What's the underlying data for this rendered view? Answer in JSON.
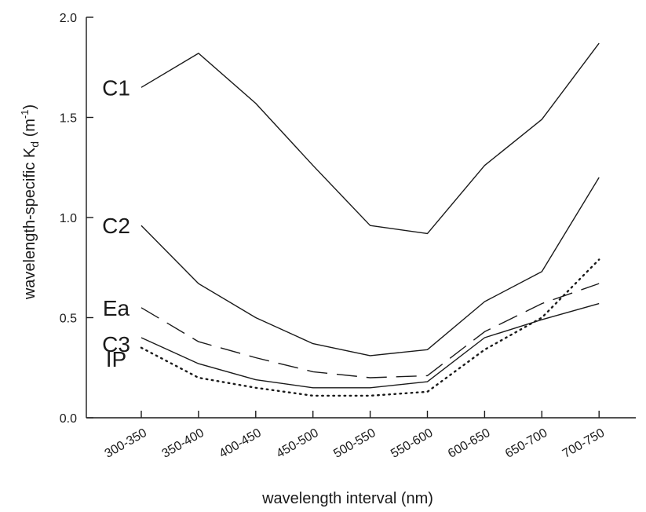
{
  "chart_data": {
    "type": "line",
    "title": "",
    "xlabel": "wavelength interval (nm)",
    "ylabel": "wavelength-specific K",
    "ylabel_subscript": "d",
    "ylabel_unit_open": " (m",
    "ylabel_unit_sup": "-1",
    "ylabel_unit_close": ")",
    "ylim": [
      0.0,
      2.0
    ],
    "yticks": [
      "0.0",
      "0.5",
      "1.0",
      "1.5",
      "2.0"
    ],
    "ytick_values": [
      0.0,
      0.5,
      1.0,
      1.5,
      2.0
    ],
    "categories": [
      "300-350",
      "350-400",
      "400-450",
      "450-500",
      "500-550",
      "550-600",
      "600-650",
      "650-700",
      "700-750"
    ],
    "grid": false,
    "series": [
      {
        "name": "C1",
        "style": "solid",
        "color": "#1a1a1a",
        "values": [
          1.65,
          1.82,
          1.57,
          1.26,
          0.96,
          0.92,
          1.26,
          1.49,
          1.87
        ]
      },
      {
        "name": "C2",
        "style": "solid",
        "color": "#1a1a1a",
        "values": [
          0.96,
          0.67,
          0.5,
          0.37,
          0.31,
          0.34,
          0.58,
          0.73,
          1.2
        ]
      },
      {
        "name": "Ea",
        "style": "long-dash",
        "color": "#1a1a1a",
        "values": [
          0.55,
          0.38,
          0.3,
          0.23,
          0.2,
          0.21,
          0.43,
          0.57,
          0.67
        ]
      },
      {
        "name": "C3",
        "style": "solid",
        "color": "#1a1a1a",
        "values": [
          0.4,
          0.27,
          0.19,
          0.15,
          0.15,
          0.18,
          0.4,
          0.49,
          0.57
        ]
      },
      {
        "name": "IP",
        "style": "dotted",
        "color": "#1a1a1a",
        "values": [
          0.35,
          0.2,
          0.15,
          0.11,
          0.11,
          0.13,
          0.34,
          0.5,
          0.79
        ]
      }
    ]
  }
}
